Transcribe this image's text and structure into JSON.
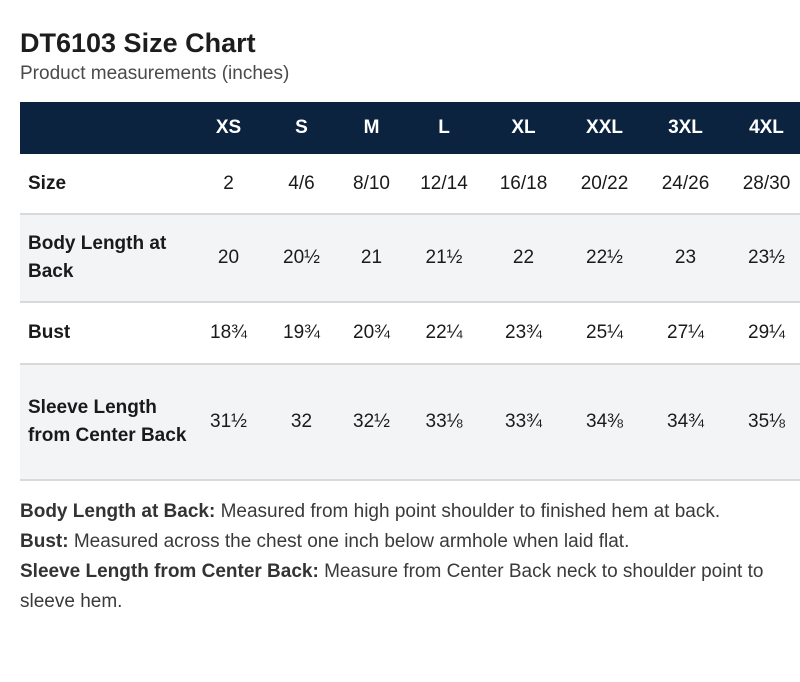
{
  "title": "DT6103 Size Chart",
  "subtitle": "Product measurements (inches)",
  "table": {
    "columns": [
      "",
      "XS",
      "S",
      "M",
      "L",
      "XL",
      "XXL",
      "3XL",
      "4XL"
    ],
    "rows": [
      {
        "label": "Size",
        "values": [
          "2",
          "4/6",
          "8/10",
          "12/14",
          "16/18",
          "20/22",
          "24/26",
          "28/30"
        ]
      },
      {
        "label": "Body Length at Back",
        "values": [
          "20",
          "20½",
          "21",
          "21½",
          "22",
          "22½",
          "23",
          "23½"
        ]
      },
      {
        "label": "Bust",
        "values": [
          "18¾",
          "19¾",
          "20¾",
          "22¼",
          "23¾",
          "25¼",
          "27¼",
          "29¼"
        ]
      },
      {
        "label": "Sleeve Length from Center Back",
        "values": [
          "31½",
          "32",
          "32½",
          "33⅛",
          "33¾",
          "34⅜",
          "34¾",
          "35⅛"
        ]
      }
    ]
  },
  "notes": [
    {
      "term": "Body Length at Back:",
      "text": " Measured from high point shoulder to finished hem at back."
    },
    {
      "term": "Bust:",
      "text": " Measured across the chest one inch below armhole when laid flat."
    },
    {
      "term": "Sleeve Length from Center Back:",
      "text": " Measure from Center Back neck to shoulder point to sleeve hem."
    }
  ]
}
